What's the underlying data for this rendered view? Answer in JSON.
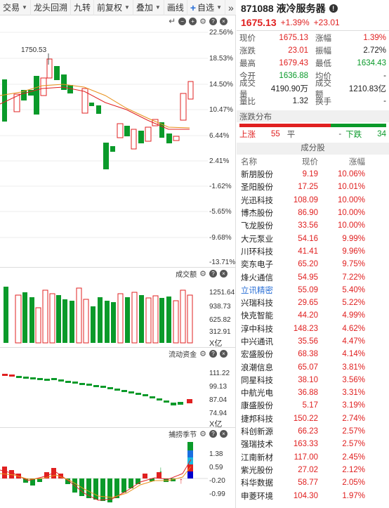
{
  "toolbar": {
    "items": [
      "交易",
      "龙头回溯",
      "九转",
      "前复权",
      "叠加",
      "画线"
    ],
    "add_label": "自选",
    "more": "»"
  },
  "kline": {
    "high_marker": "1750.53",
    "axis_labels": [
      "22.56%",
      "18.53%",
      "14.50%",
      "10.47%",
      "6.44%",
      "2.41%",
      "-1.62%",
      "-5.65%",
      "-9.68%",
      "-13.71%"
    ]
  },
  "volume_panel": {
    "title": "成交额",
    "axis_labels": [
      "1251.64",
      "938.73",
      "625.82",
      "312.91",
      "X亿"
    ]
  },
  "fund_panel": {
    "title": "流动资金",
    "axis_labels": [
      "111.22",
      "99.13",
      "87.04",
      "74.94",
      "X亿"
    ]
  },
  "season_panel": {
    "title": "捕捞季节",
    "axis_labels": [
      "1.38",
      "0.59",
      "-0.20",
      "-0.99"
    ]
  },
  "quote": {
    "code": "871088",
    "name": "液冷服务器",
    "price": "1675.13",
    "change_pct": "+1.39%",
    "change": "+23.01",
    "rows": [
      {
        "k1": "现价",
        "v1": "1675.13",
        "c1": "red",
        "k2": "涨幅",
        "v2": "1.39%",
        "c2": "red"
      },
      {
        "k1": "涨跌",
        "v1": "23.01",
        "c1": "red",
        "k2": "振幅",
        "v2": "2.72%",
        "c2": "blk"
      },
      {
        "k1": "最高",
        "v1": "1679.43",
        "c1": "red",
        "k2": "最低",
        "v2": "1634.43",
        "c2": "green"
      },
      {
        "k1": "今开",
        "v1": "1636.88",
        "c1": "green",
        "k2": "均价",
        "v2": "-",
        "c2": "blk"
      },
      {
        "k1": "成交量",
        "v1": "4190.90万",
        "c1": "blk",
        "k2": "成交额",
        "v2": "1210.83亿",
        "c2": "blk"
      },
      {
        "k1": "量比",
        "v1": "1.32",
        "c1": "blk",
        "k2": "换手",
        "v2": "-",
        "c2": "blk"
      }
    ]
  },
  "distribution": {
    "title": "涨跌分布",
    "up_label": "上涨",
    "up_count": "55",
    "flat_label": "平",
    "flat_count": "-",
    "down_label": "下跌",
    "down_count": "34",
    "up_share": 0.62,
    "colors": {
      "up": "#e02020",
      "down": "#0a9a2a"
    }
  },
  "components": {
    "title": "成分股",
    "col_name": "名称",
    "col_price": "现价",
    "col_change": "涨幅",
    "rows": [
      {
        "name": "新朋股份",
        "price": "9.19",
        "change": "10.06%"
      },
      {
        "name": "圣阳股份",
        "price": "17.25",
        "change": "10.01%"
      },
      {
        "name": "光迅科技",
        "price": "108.09",
        "change": "10.00%"
      },
      {
        "name": "博杰股份",
        "price": "86.90",
        "change": "10.00%"
      },
      {
        "name": "飞龙股份",
        "price": "33.56",
        "change": "10.00%"
      },
      {
        "name": "大元泵业",
        "price": "54.16",
        "change": "9.99%"
      },
      {
        "name": "川环科技",
        "price": "41.41",
        "change": "9.96%"
      },
      {
        "name": "奕东电子",
        "price": "65.20",
        "change": "9.75%"
      },
      {
        "name": "烽火通信",
        "price": "54.95",
        "change": "7.22%"
      },
      {
        "name": "立讯精密",
        "price": "55.09",
        "change": "5.40%",
        "link": true
      },
      {
        "name": "兴瑞科技",
        "price": "29.65",
        "change": "5.22%"
      },
      {
        "name": "快克智能",
        "price": "44.20",
        "change": "4.99%"
      },
      {
        "name": "淳中科技",
        "price": "148.23",
        "change": "4.62%"
      },
      {
        "name": "中兴通讯",
        "price": "35.56",
        "change": "4.47%"
      },
      {
        "name": "宏盛股份",
        "price": "68.38",
        "change": "4.14%"
      },
      {
        "name": "浪潮信息",
        "price": "65.07",
        "change": "3.81%"
      },
      {
        "name": "同星科技",
        "price": "38.10",
        "change": "3.56%"
      },
      {
        "name": "中航光电",
        "price": "36.88",
        "change": "3.31%"
      },
      {
        "name": "康盛股份",
        "price": "5.17",
        "change": "3.19%"
      },
      {
        "name": "捷邦科技",
        "price": "150.22",
        "change": "2.74%"
      },
      {
        "name": "科创新源",
        "price": "66.23",
        "change": "2.57%"
      },
      {
        "name": "强瑞技术",
        "price": "163.33",
        "change": "2.57%"
      },
      {
        "name": "江南新材",
        "price": "117.00",
        "change": "2.45%"
      },
      {
        "name": "紫光股份",
        "price": "27.02",
        "change": "2.12%"
      },
      {
        "name": "科华数据",
        "price": "58.77",
        "change": "2.05%"
      },
      {
        "name": "申菱环境",
        "price": "104.30",
        "change": "1.97%"
      }
    ]
  }
}
